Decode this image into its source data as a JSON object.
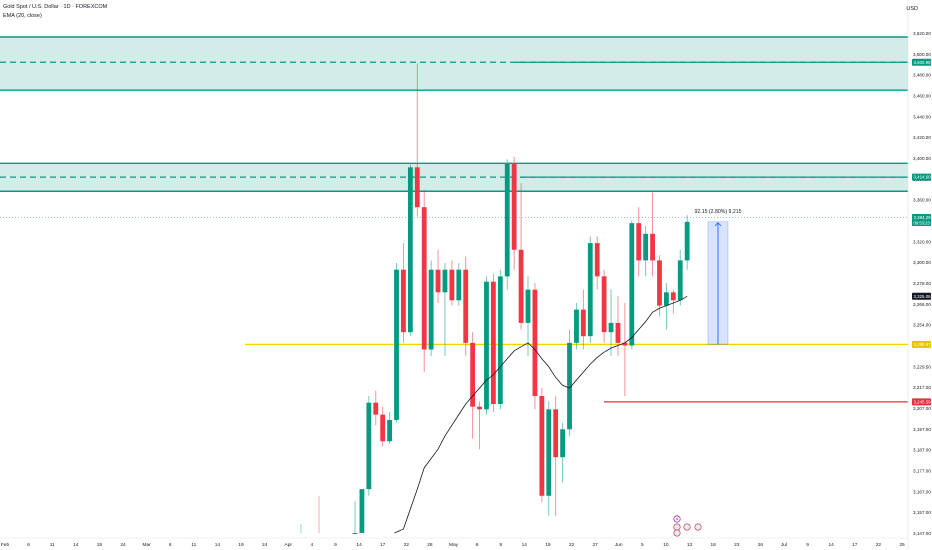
{
  "header": {
    "symbol_line": "Gold Spot / U.S. Dollar · 1D · FOREXCOM",
    "indicator_line": "EMA (20, close)",
    "currency": "USD"
  },
  "colors": {
    "up": "#089981",
    "down": "#f23645",
    "zone_fill": "#089981",
    "zone_line": "#089981",
    "support": "#f5d000",
    "stop": "#e0303c",
    "ema": "#131722",
    "measure": "#2962ff",
    "axis_text": "#131722"
  },
  "chart_data": {
    "type": "candlestick",
    "title": "",
    "ylim": [
      3147,
      3523
    ],
    "y_ticks": [
      "3,520.00",
      "3,500.00",
      "3,480.00",
      "3,460.00",
      "3,440.00",
      "3,420.00",
      "3,400.00",
      "3,380.00",
      "3,360.00",
      "3,340.00",
      "3,320.00",
      "3,300.00",
      "3,278.00",
      "3,266.00",
      "3,254.00",
      "3,242.00",
      "3,229.50",
      "3,217.00",
      "3,207.00",
      "3,197.00",
      "3,187.00",
      "3,177.00",
      "3,167.00",
      "3,157.00",
      "3,147.00"
    ],
    "x_labels": [
      "Feb",
      "6",
      "11",
      "14",
      "19",
      "24",
      "Mar",
      "6",
      "11",
      "14",
      "19",
      "24",
      "Apr",
      "4",
      "9",
      "14",
      "17",
      "22",
      "28",
      "May",
      "6",
      "9",
      "14",
      "19",
      "22",
      "27",
      "Jun",
      "5",
      "10",
      "13",
      "18",
      "23",
      "26",
      "Jul",
      "9",
      "14",
      "17",
      "22",
      "25"
    ],
    "price_labels": [
      {
        "name": "zone-upper-mid",
        "value": 3500.98,
        "text": "3,500.98",
        "color": "#089981"
      },
      {
        "name": "zone-lower-mid",
        "value": 3414.6,
        "text": "3,414.60",
        "color": "#089981"
      },
      {
        "name": "last-price",
        "value": 3384.29,
        "text": "3,384.29",
        "sub": "09:53:23",
        "color": "#089981"
      },
      {
        "name": "ema-value",
        "value": 3325.06,
        "text": "3,325.06",
        "color": "#131722"
      },
      {
        "name": "support",
        "value": 3288.87,
        "text": "3,288.87",
        "color": "#e6c200"
      },
      {
        "name": "stop",
        "value": 3245.59,
        "text": "3,245.59",
        "color": "#e0303c"
      }
    ],
    "zones": [
      {
        "name": "upper-supply-zone",
        "top": 3520,
        "mid": 3500.98,
        "bottom": 3480
      },
      {
        "name": "lower-supply-zone",
        "top": 3425,
        "mid": 3414.6,
        "bottom": 3404
      }
    ],
    "support_level": 3288.87,
    "stop_level": 3245.59,
    "measure": {
      "label": "92.15 (2.80%) 9,215",
      "from": 3288.87,
      "to": 3381.0
    },
    "candles": [
      {
        "date": "Apr 7",
        "o": 3147,
        "h": 3171,
        "l": 3147,
        "c": 3147
      },
      {
        "date": "Apr 8",
        "o": 3147,
        "h": 3180,
        "l": 3147,
        "c": 3180
      },
      {
        "date": "Apr 9",
        "o": 3180,
        "h": 3250,
        "l": 3175,
        "c": 3245
      },
      {
        "date": "Apr 10",
        "o": 3245,
        "h": 3254,
        "l": 3228,
        "c": 3236
      },
      {
        "date": "Apr 11",
        "o": 3236,
        "h": 3242,
        "l": 3212,
        "c": 3216
      },
      {
        "date": "Apr 14",
        "o": 3216,
        "h": 3238,
        "l": 3214,
        "c": 3232
      },
      {
        "date": "Apr 15",
        "o": 3232,
        "h": 3350,
        "l": 3230,
        "c": 3345
      },
      {
        "date": "Apr 16",
        "o": 3345,
        "h": 3365,
        "l": 3290,
        "c": 3298
      },
      {
        "date": "Apr 17",
        "o": 3298,
        "h": 3424,
        "l": 3295,
        "c": 3422
      },
      {
        "date": "Apr 18",
        "o": 3422,
        "h": 3500,
        "l": 3385,
        "c": 3392
      },
      {
        "date": "Apr 21",
        "o": 3392,
        "h": 3405,
        "l": 3268,
        "c": 3285
      },
      {
        "date": "Apr 22",
        "o": 3285,
        "h": 3352,
        "l": 3280,
        "c": 3345
      },
      {
        "date": "Apr 23",
        "o": 3345,
        "h": 3360,
        "l": 3320,
        "c": 3328
      },
      {
        "date": "Apr 24",
        "o": 3328,
        "h": 3350,
        "l": 3280,
        "c": 3345
      },
      {
        "date": "Apr 25",
        "o": 3345,
        "h": 3352,
        "l": 3318,
        "c": 3322
      },
      {
        "date": "Apr 28",
        "o": 3322,
        "h": 3350,
        "l": 3318,
        "c": 3345
      },
      {
        "date": "Apr 29",
        "o": 3345,
        "h": 3355,
        "l": 3280,
        "c": 3290
      },
      {
        "date": "Apr 30",
        "o": 3290,
        "h": 3298,
        "l": 3218,
        "c": 3242
      },
      {
        "date": "May 1",
        "o": 3242,
        "h": 3246,
        "l": 3210,
        "c": 3240
      },
      {
        "date": "May 2",
        "o": 3240,
        "h": 3340,
        "l": 3236,
        "c": 3336
      },
      {
        "date": "May 5",
        "o": 3336,
        "h": 3342,
        "l": 3238,
        "c": 3244
      },
      {
        "date": "May 6",
        "o": 3244,
        "h": 3345,
        "l": 3240,
        "c": 3340
      },
      {
        "date": "May 7",
        "o": 3340,
        "h": 3428,
        "l": 3330,
        "c": 3425
      },
      {
        "date": "May 8",
        "o": 3425,
        "h": 3430,
        "l": 3345,
        "c": 3360
      },
      {
        "date": "May 9",
        "o": 3360,
        "h": 3410,
        "l": 3300,
        "c": 3305
      },
      {
        "date": "May 12",
        "o": 3305,
        "h": 3340,
        "l": 3280,
        "c": 3330
      },
      {
        "date": "May 13",
        "o": 3330,
        "h": 3335,
        "l": 3240,
        "c": 3250
      },
      {
        "date": "May 14",
        "o": 3250,
        "h": 3256,
        "l": 3170,
        "c": 3175
      },
      {
        "date": "May 15",
        "o": 3175,
        "h": 3246,
        "l": 3160,
        "c": 3240
      },
      {
        "date": "May 16",
        "o": 3240,
        "h": 3250,
        "l": 3160,
        "c": 3204
      },
      {
        "date": "May 19",
        "o": 3204,
        "h": 3230,
        "l": 3185,
        "c": 3225
      },
      {
        "date": "May 20",
        "o": 3225,
        "h": 3300,
        "l": 3220,
        "c": 3290
      },
      {
        "date": "May 21",
        "o": 3290,
        "h": 3320,
        "l": 3285,
        "c": 3315
      },
      {
        "date": "May 22",
        "o": 3315,
        "h": 3330,
        "l": 3285,
        "c": 3295
      },
      {
        "date": "May 23",
        "o": 3295,
        "h": 3370,
        "l": 3290,
        "c": 3365
      },
      {
        "date": "May 26",
        "o": 3365,
        "h": 3370,
        "l": 3330,
        "c": 3340
      },
      {
        "date": "May 27",
        "o": 3340,
        "h": 3345,
        "l": 3290,
        "c": 3298
      },
      {
        "date": "May 28",
        "o": 3298,
        "h": 3330,
        "l": 3280,
        "c": 3305
      },
      {
        "date": "May 29",
        "o": 3305,
        "h": 3325,
        "l": 3280,
        "c": 3290
      },
      {
        "date": "May 30",
        "o": 3290,
        "h": 3320,
        "l": 3250,
        "c": 3288
      },
      {
        "date": "Jun 2",
        "o": 3288,
        "h": 3382,
        "l": 3285,
        "c": 3380
      },
      {
        "date": "Jun 3",
        "o": 3380,
        "h": 3392,
        "l": 3340,
        "c": 3352
      },
      {
        "date": "Jun 4",
        "o": 3352,
        "h": 3378,
        "l": 3340,
        "c": 3372
      },
      {
        "date": "Jun 5",
        "o": 3372,
        "h": 3403,
        "l": 3340,
        "c": 3352
      },
      {
        "date": "Jun 6",
        "o": 3352,
        "h": 3356,
        "l": 3310,
        "c": 3318
      },
      {
        "date": "Jun 9",
        "o": 3318,
        "h": 3335,
        "l": 3300,
        "c": 3328
      },
      {
        "date": "Jun 10",
        "o": 3328,
        "h": 3330,
        "l": 3312,
        "c": 3322
      },
      {
        "date": "Jun 11",
        "o": 3322,
        "h": 3360,
        "l": 3318,
        "c": 3352
      },
      {
        "date": "Jun 12",
        "o": 3352,
        "h": 3386,
        "l": 3345,
        "c": 3381
      }
    ],
    "ema_20": [
      {
        "date": "Apr 16",
        "v": 3150
      },
      {
        "date": "Apr 17",
        "v": 3165
      },
      {
        "date": "Apr 18",
        "v": 3180
      },
      {
        "date": "Apr 21",
        "v": 3196
      },
      {
        "date": "Apr 22",
        "v": 3203
      },
      {
        "date": "Apr 23",
        "v": 3210
      },
      {
        "date": "Apr 24",
        "v": 3220
      },
      {
        "date": "Apr 25",
        "v": 3228
      },
      {
        "date": "Apr 28",
        "v": 3236
      },
      {
        "date": "Apr 29",
        "v": 3244
      },
      {
        "date": "Apr 30",
        "v": 3250
      },
      {
        "date": "May 1",
        "v": 3256
      },
      {
        "date": "May 2",
        "v": 3262
      },
      {
        "date": "May 5",
        "v": 3266
      },
      {
        "date": "May 6",
        "v": 3272
      },
      {
        "date": "May 7",
        "v": 3278
      },
      {
        "date": "May 8",
        "v": 3284
      },
      {
        "date": "May 9",
        "v": 3287
      },
      {
        "date": "May 12",
        "v": 3290
      },
      {
        "date": "May 13",
        "v": 3285
      },
      {
        "date": "May 14",
        "v": 3278
      },
      {
        "date": "May 15",
        "v": 3272
      },
      {
        "date": "May 16",
        "v": 3264
      },
      {
        "date": "May 19",
        "v": 3258
      },
      {
        "date": "May 20",
        "v": 3256
      },
      {
        "date": "May 21",
        "v": 3262
      },
      {
        "date": "May 22",
        "v": 3268
      },
      {
        "date": "May 23",
        "v": 3274
      },
      {
        "date": "May 26",
        "v": 3279
      },
      {
        "date": "May 27",
        "v": 3283
      },
      {
        "date": "May 28",
        "v": 3286
      },
      {
        "date": "May 29",
        "v": 3288
      },
      {
        "date": "May 30",
        "v": 3290
      },
      {
        "date": "Jun 2",
        "v": 3294
      },
      {
        "date": "Jun 3",
        "v": 3300
      },
      {
        "date": "Jun 4",
        "v": 3306
      },
      {
        "date": "Jun 5",
        "v": 3313
      },
      {
        "date": "Jun 6",
        "v": 3316
      },
      {
        "date": "Jun 9",
        "v": 3318
      },
      {
        "date": "Jun 10",
        "v": 3320
      },
      {
        "date": "Jun 11",
        "v": 3322
      },
      {
        "date": "Jun 12",
        "v": 3325
      }
    ]
  }
}
